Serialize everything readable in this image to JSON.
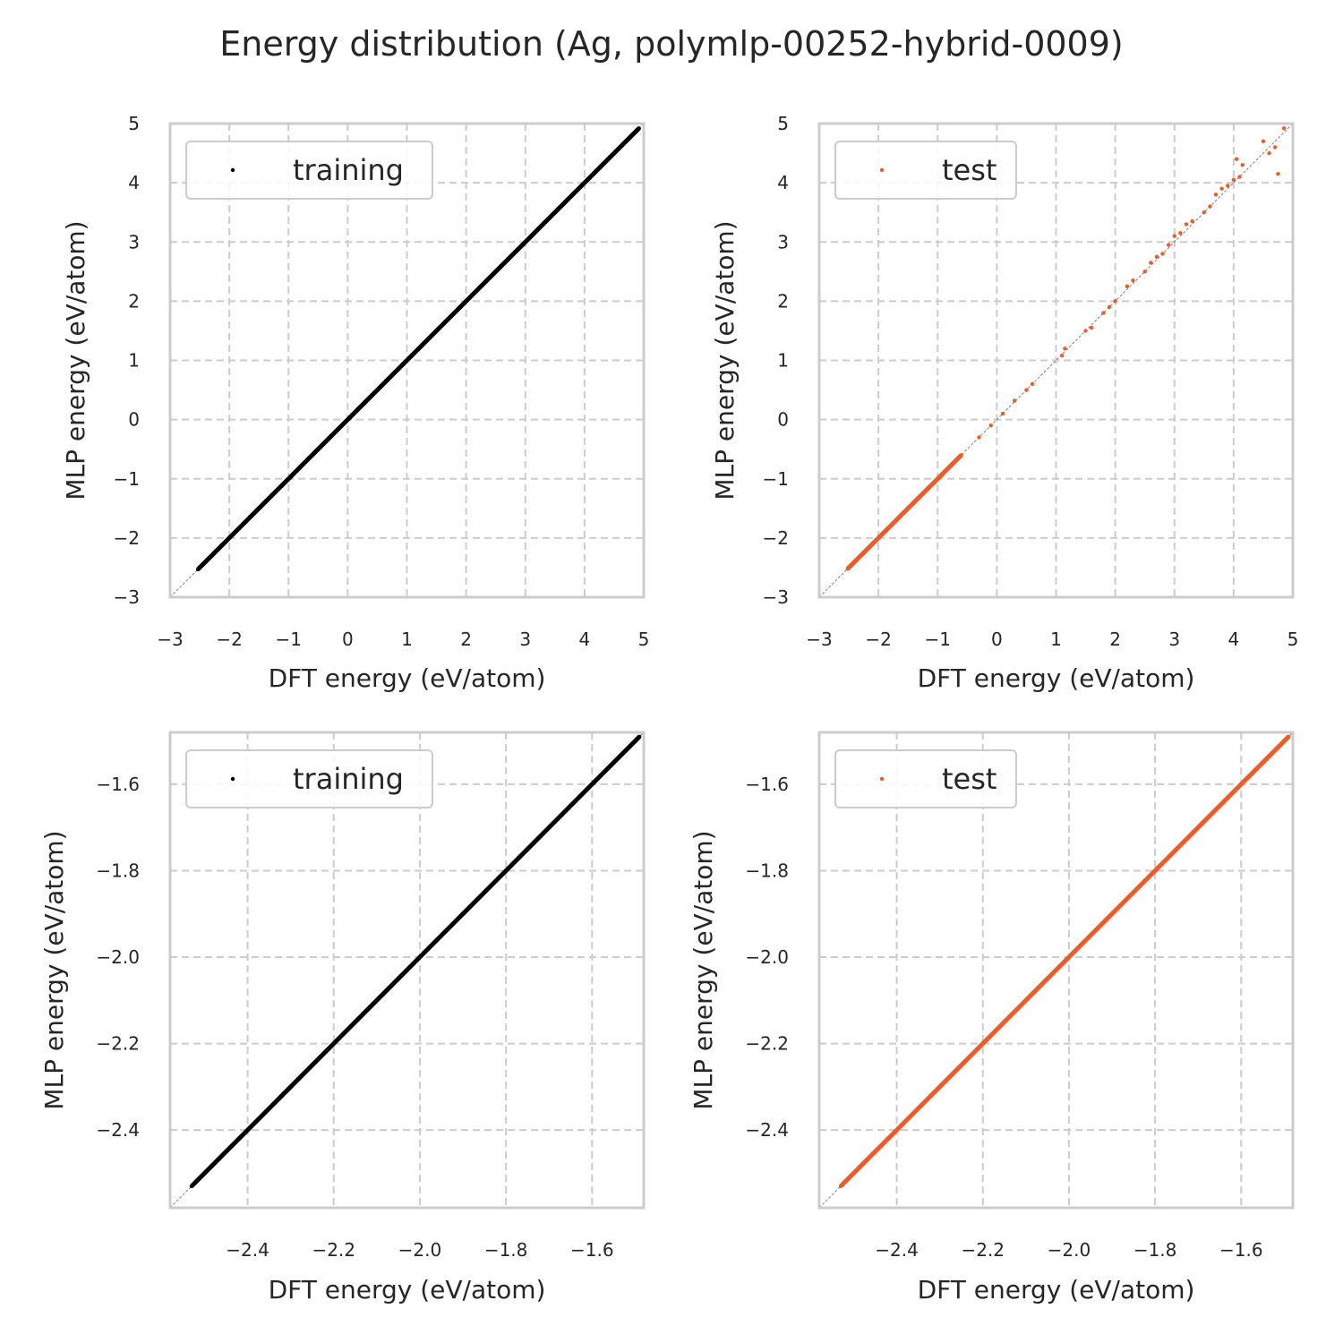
{
  "title": "Energy distribution (Ag, polymlp-00252-hybrid-0009)",
  "colors": {
    "training": "#000000",
    "test": "#f15a24",
    "grid": "#cccccc",
    "spine": "#cccccc",
    "diagonal": "#808080"
  },
  "chart_data": [
    {
      "id": "top-left",
      "type": "scatter",
      "xlabel": "DFT energy (eV/atom)",
      "ylabel": "MLP energy (eV/atom)",
      "xlim": [
        -3,
        5
      ],
      "ylim": [
        -3,
        5
      ],
      "xticks": [
        -3,
        -2,
        -1,
        0,
        1,
        2,
        3,
        4,
        5
      ],
      "yticks": [
        -3,
        -2,
        -1,
        0,
        1,
        2,
        3,
        4,
        5
      ],
      "xtick_labels": [
        "−3",
        "−2",
        "−1",
        "0",
        "1",
        "2",
        "3",
        "4",
        "5"
      ],
      "ytick_labels": [
        "−3",
        "−2",
        "−1",
        "0",
        "1",
        "2",
        "3",
        "4",
        "5"
      ],
      "grid": true,
      "diagonal": true,
      "legend": {
        "label": "training",
        "position": "top-left"
      },
      "series": [
        {
          "name": "training",
          "color": "#000000",
          "points": [
            [
              -2.53,
              -2.53
            ],
            [
              -2.3,
              -2.3
            ],
            [
              -2.0,
              -2.0
            ],
            [
              -1.7,
              -1.7
            ],
            [
              -1.5,
              -1.5
            ],
            [
              -1.2,
              -1.2
            ],
            [
              -1.0,
              -1.0
            ],
            [
              -0.7,
              -0.7
            ],
            [
              -0.5,
              -0.5
            ],
            [
              -0.2,
              -0.2
            ],
            [
              0.0,
              0.0
            ],
            [
              0.3,
              0.3
            ],
            [
              0.5,
              0.5
            ],
            [
              0.8,
              0.8
            ],
            [
              1.0,
              1.0
            ],
            [
              1.3,
              1.3
            ],
            [
              1.5,
              1.5
            ],
            [
              1.8,
              1.8
            ],
            [
              2.0,
              2.0
            ],
            [
              2.3,
              2.3
            ],
            [
              2.5,
              2.5
            ],
            [
              2.8,
              2.8
            ],
            [
              3.0,
              3.0
            ],
            [
              3.3,
              3.3
            ],
            [
              3.5,
              3.5
            ],
            [
              3.8,
              3.8
            ],
            [
              4.0,
              4.0
            ],
            [
              4.3,
              4.3
            ],
            [
              4.5,
              4.5
            ],
            [
              4.8,
              4.8
            ],
            [
              4.92,
              4.92
            ]
          ]
        }
      ]
    },
    {
      "id": "top-right",
      "type": "scatter",
      "xlabel": "DFT energy (eV/atom)",
      "ylabel": "MLP energy (eV/atom)",
      "xlim": [
        -3,
        5
      ],
      "ylim": [
        -3,
        5
      ],
      "xticks": [
        -3,
        -2,
        -1,
        0,
        1,
        2,
        3,
        4,
        5
      ],
      "yticks": [
        -3,
        -2,
        -1,
        0,
        1,
        2,
        3,
        4,
        5
      ],
      "xtick_labels": [
        "−3",
        "−2",
        "−1",
        "0",
        "1",
        "2",
        "3",
        "4",
        "5"
      ],
      "ytick_labels": [
        "−3",
        "−2",
        "−1",
        "0",
        "1",
        "2",
        "3",
        "4",
        "5"
      ],
      "grid": true,
      "diagonal": true,
      "legend": {
        "label": "test",
        "position": "top-left"
      },
      "series": [
        {
          "name": "test",
          "color": "#f15a24",
          "points": [
            [
              -2.52,
              -2.52
            ],
            [
              -2.4,
              -2.4
            ],
            [
              -2.2,
              -2.2
            ],
            [
              -2.0,
              -2.0
            ],
            [
              -1.8,
              -1.8
            ],
            [
              -1.6,
              -1.6
            ],
            [
              -1.4,
              -1.4
            ],
            [
              -1.2,
              -1.2
            ],
            [
              -1.0,
              -1.0
            ],
            [
              -0.8,
              -0.8
            ],
            [
              -0.6,
              -0.6
            ],
            [
              -0.3,
              -0.3
            ],
            [
              -0.1,
              -0.1
            ],
            [
              0.1,
              0.1
            ],
            [
              0.3,
              0.32
            ],
            [
              0.5,
              0.5
            ],
            [
              0.6,
              0.6
            ],
            [
              1.1,
              1.08
            ],
            [
              1.15,
              1.2
            ],
            [
              1.5,
              1.5
            ],
            [
              1.6,
              1.55
            ],
            [
              1.8,
              1.8
            ],
            [
              1.9,
              1.9
            ],
            [
              2.0,
              2.0
            ],
            [
              2.2,
              2.25
            ],
            [
              2.3,
              2.35
            ],
            [
              2.5,
              2.5
            ],
            [
              2.6,
              2.65
            ],
            [
              2.7,
              2.75
            ],
            [
              2.8,
              2.8
            ],
            [
              2.9,
              2.95
            ],
            [
              3.0,
              3.1
            ],
            [
              3.1,
              3.15
            ],
            [
              3.2,
              3.3
            ],
            [
              3.3,
              3.35
            ],
            [
              3.5,
              3.5
            ],
            [
              3.6,
              3.6
            ],
            [
              3.7,
              3.8
            ],
            [
              3.8,
              3.9
            ],
            [
              3.9,
              3.95
            ],
            [
              4.0,
              4.05
            ],
            [
              4.05,
              4.4
            ],
            [
              4.1,
              4.1
            ],
            [
              4.15,
              4.3
            ],
            [
              4.5,
              4.7
            ],
            [
              4.6,
              4.5
            ],
            [
              4.7,
              4.6
            ],
            [
              4.75,
              4.15
            ],
            [
              4.85,
              4.92
            ]
          ]
        }
      ]
    },
    {
      "id": "bottom-left",
      "type": "scatter",
      "xlabel": "DFT energy (eV/atom)",
      "ylabel": "MLP energy (eV/atom)",
      "xlim": [
        -2.58,
        -1.48
      ],
      "ylim": [
        -2.58,
        -1.48
      ],
      "xticks": [
        -2.4,
        -2.2,
        -2.0,
        -1.8,
        -1.6
      ],
      "yticks": [
        -2.4,
        -2.2,
        -2.0,
        -1.8,
        -1.6
      ],
      "xtick_labels": [
        "−2.4",
        "−2.2",
        "−2.0",
        "−1.8",
        "−1.6"
      ],
      "ytick_labels": [
        "−2.4",
        "−2.2",
        "−2.0",
        "−1.8",
        "−1.6"
      ],
      "grid": true,
      "diagonal": true,
      "legend": {
        "label": "training",
        "position": "top-left"
      },
      "series": [
        {
          "name": "training",
          "color": "#000000",
          "points": [
            [
              -2.53,
              -2.53
            ],
            [
              -2.45,
              -2.45
            ],
            [
              -2.4,
              -2.4
            ],
            [
              -2.3,
              -2.3
            ],
            [
              -2.2,
              -2.2
            ],
            [
              -2.1,
              -2.1
            ],
            [
              -2.0,
              -2.0
            ],
            [
              -1.9,
              -1.9
            ],
            [
              -1.8,
              -1.8
            ],
            [
              -1.73,
              -1.73
            ],
            [
              -1.7,
              -1.7
            ],
            [
              -1.6,
              -1.6
            ],
            [
              -1.5,
              -1.5
            ],
            [
              -1.49,
              -1.49
            ]
          ]
        }
      ]
    },
    {
      "id": "bottom-right",
      "type": "scatter",
      "xlabel": "DFT energy (eV/atom)",
      "ylabel": "MLP energy (eV/atom)",
      "xlim": [
        -2.58,
        -1.48
      ],
      "ylim": [
        -2.58,
        -1.48
      ],
      "xticks": [
        -2.4,
        -2.2,
        -2.0,
        -1.8,
        -1.6
      ],
      "yticks": [
        -2.4,
        -2.2,
        -2.0,
        -1.8,
        -1.6
      ],
      "xtick_labels": [
        "−2.4",
        "−2.2",
        "−2.0",
        "−1.8",
        "−1.6"
      ],
      "ytick_labels": [
        "−2.4",
        "−2.2",
        "−2.0",
        "−1.8",
        "−1.6"
      ],
      "grid": true,
      "diagonal": true,
      "legend": {
        "label": "test",
        "position": "top-left"
      },
      "series": [
        {
          "name": "test",
          "color": "#f15a24",
          "points": [
            [
              -2.53,
              -2.53
            ],
            [
              -2.45,
              -2.45
            ],
            [
              -2.4,
              -2.4
            ],
            [
              -2.3,
              -2.3
            ],
            [
              -2.2,
              -2.2
            ],
            [
              -2.1,
              -2.1
            ],
            [
              -2.0,
              -2.0
            ],
            [
              -1.9,
              -1.9
            ],
            [
              -1.8,
              -1.8
            ],
            [
              -1.7,
              -1.7
            ],
            [
              -1.6,
              -1.6
            ],
            [
              -1.5,
              -1.5
            ],
            [
              -1.49,
              -1.49
            ]
          ]
        }
      ]
    }
  ]
}
